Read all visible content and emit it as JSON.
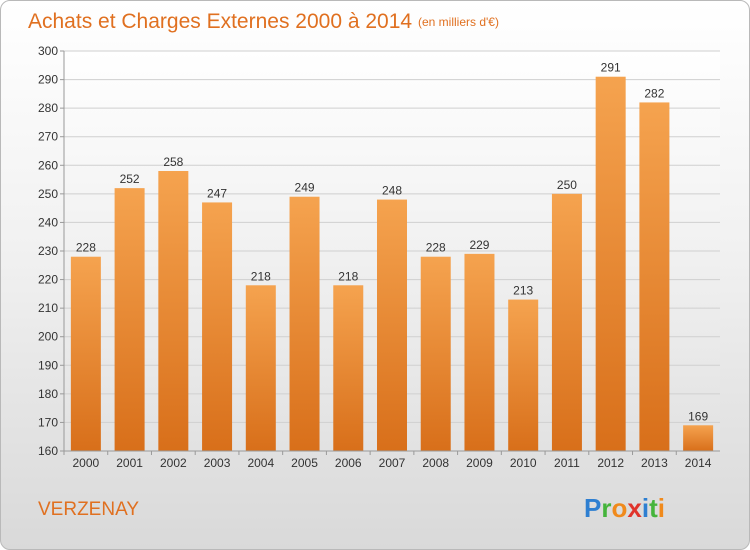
{
  "chart_data": {
    "type": "bar",
    "title": "Achats et Charges Externes 2000 à 2014",
    "subtitle": "(en milliers d'€)",
    "categories": [
      "2000",
      "2001",
      "2002",
      "2003",
      "2004",
      "2005",
      "2006",
      "2007",
      "2008",
      "2009",
      "2010",
      "2011",
      "2012",
      "2013",
      "2014"
    ],
    "values": [
      228,
      252,
      258,
      247,
      218,
      249,
      218,
      248,
      228,
      229,
      213,
      250,
      291,
      282,
      169
    ],
    "ylim": [
      160,
      300
    ],
    "yticks": [
      160,
      170,
      180,
      190,
      200,
      210,
      220,
      230,
      240,
      250,
      260,
      270,
      280,
      290,
      300
    ],
    "grid": true,
    "bar_color_top": "#f5a34f",
    "bar_color_bottom": "#d86f1a"
  },
  "footer": {
    "place": "VERZENAY",
    "logo_letters": [
      {
        "char": "P",
        "color": "#2e7fd1"
      },
      {
        "char": "r",
        "color": "#45b43c"
      },
      {
        "char": "o",
        "color": "#f08a1c"
      },
      {
        "char": "x",
        "color": "#e0342c"
      },
      {
        "char": "i",
        "color": "#2e7fd1"
      },
      {
        "char": "t",
        "color": "#45b43c"
      },
      {
        "char": "i",
        "color": "#f08a1c"
      }
    ]
  }
}
